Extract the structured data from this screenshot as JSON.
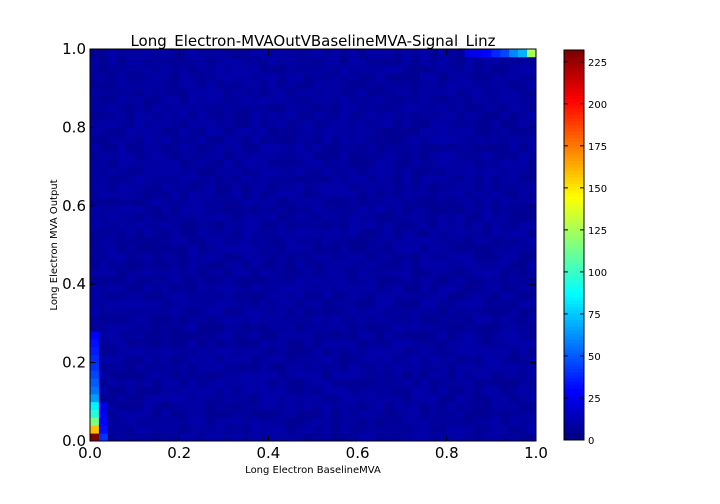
{
  "chart_data": {
    "type": "heatmap",
    "title": "Long_Electron-MVAOutVBaselineMVA-Signal_Linz",
    "xlabel": "Long Electron BaselineMVA",
    "ylabel": "Long Electron MVA Output",
    "xlim": [
      0.0,
      1.0
    ],
    "ylim": [
      0.0,
      1.0
    ],
    "x_ticks": [
      "0.0",
      "0.2",
      "0.4",
      "0.6",
      "0.8",
      "1.0"
    ],
    "y_ticks": [
      "0.0",
      "0.2",
      "0.4",
      "0.6",
      "0.8",
      "1.0"
    ],
    "bins_x": 50,
    "bins_y": 50,
    "colormap": "jet",
    "colorbar": {
      "min": 0,
      "max": 232,
      "ticks": [
        "0",
        "25",
        "50",
        "75",
        "100",
        "125",
        "150",
        "175",
        "200",
        "225"
      ]
    },
    "background_level": 7,
    "notable_cells": [
      {
        "x_bin": 0,
        "y_bin": 0,
        "value": 232
      },
      {
        "x_bin": 0,
        "y_bin": 1,
        "value": 160
      },
      {
        "x_bin": 0,
        "y_bin": 2,
        "value": 115
      },
      {
        "x_bin": 0,
        "y_bin": 3,
        "value": 95
      },
      {
        "x_bin": 0,
        "y_bin": 4,
        "value": 85
      },
      {
        "x_bin": 0,
        "y_bin": 5,
        "value": 65
      },
      {
        "x_bin": 0,
        "y_bin": 6,
        "value": 55
      },
      {
        "x_bin": 0,
        "y_bin": 7,
        "value": 50
      },
      {
        "x_bin": 0,
        "y_bin": 8,
        "value": 45
      },
      {
        "x_bin": 0,
        "y_bin": 9,
        "value": 40
      },
      {
        "x_bin": 0,
        "y_bin": 10,
        "value": 38
      },
      {
        "x_bin": 0,
        "y_bin": 11,
        "value": 35
      },
      {
        "x_bin": 0,
        "y_bin": 12,
        "value": 32
      },
      {
        "x_bin": 0,
        "y_bin": 13,
        "value": 28
      },
      {
        "x_bin": 1,
        "y_bin": 0,
        "value": 40
      },
      {
        "x_bin": 1,
        "y_bin": 1,
        "value": 32
      },
      {
        "x_bin": 1,
        "y_bin": 2,
        "value": 28
      },
      {
        "x_bin": 1,
        "y_bin": 3,
        "value": 24
      },
      {
        "x_bin": 1,
        "y_bin": 4,
        "value": 22
      },
      {
        "x_bin": 49,
        "y_bin": 49,
        "value": 125
      },
      {
        "x_bin": 48,
        "y_bin": 49,
        "value": 70
      },
      {
        "x_bin": 47,
        "y_bin": 49,
        "value": 60
      },
      {
        "x_bin": 46,
        "y_bin": 49,
        "value": 45
      },
      {
        "x_bin": 45,
        "y_bin": 49,
        "value": 38
      },
      {
        "x_bin": 44,
        "y_bin": 49,
        "value": 30
      },
      {
        "x_bin": 43,
        "y_bin": 49,
        "value": 25
      },
      {
        "x_bin": 42,
        "y_bin": 49,
        "value": 22
      }
    ]
  }
}
